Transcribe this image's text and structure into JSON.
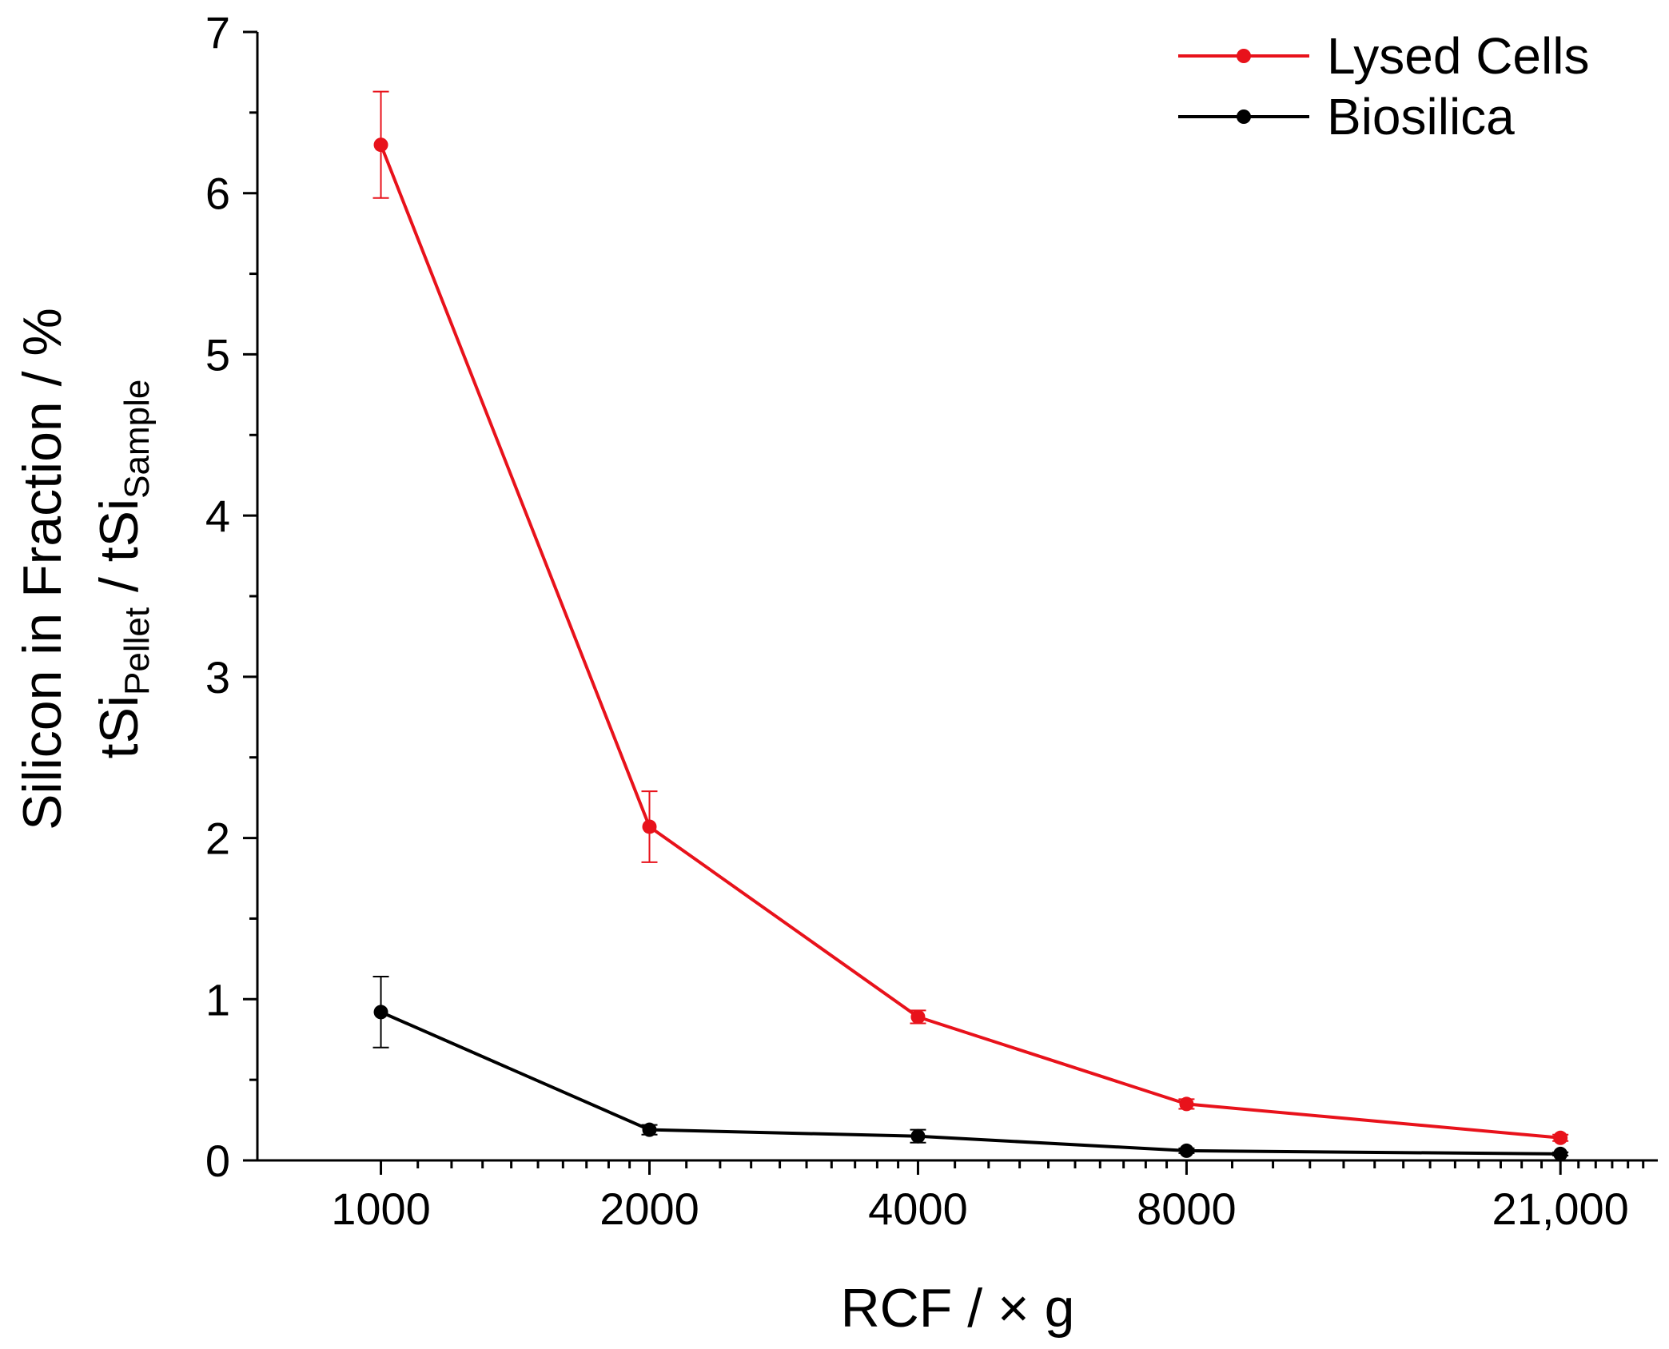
{
  "chart_data": {
    "type": "line",
    "title": "",
    "xlabel": "RCF / × g",
    "ylabel_line1": "Silicon in Fraction / %",
    "ylabel_line2": {
      "parts": [
        {
          "text": "tSi",
          "sub": false
        },
        {
          "text": "Pellet",
          "sub": true
        },
        {
          "text": " / tSi",
          "sub": false
        },
        {
          "text": "Sample",
          "sub": true
        }
      ]
    },
    "x_scale": "log",
    "xlim": [
      727,
      27000
    ],
    "ylim": [
      0,
      7
    ],
    "x_tick_values": [
      1000,
      2000,
      4000,
      8000,
      21000
    ],
    "x_tick_labels": [
      "1000",
      "2000",
      "4000",
      "8000",
      "21,000"
    ],
    "y_ticks": [
      0,
      1,
      2,
      3,
      4,
      5,
      6,
      7
    ],
    "y_tick_labels": [
      "0",
      "1",
      "2",
      "3",
      "4",
      "5",
      "6",
      "7"
    ],
    "x_minor_ticks": [
      1100,
      1200,
      1300,
      1400,
      1500,
      1600,
      1700,
      1800,
      1900,
      2200,
      2400,
      2600,
      2800,
      3000,
      3200,
      3400,
      3600,
      3800,
      4400,
      4800,
      5200,
      5600,
      6000,
      6400,
      6800,
      7200,
      7600,
      9000,
      10000,
      11000,
      12000,
      13000,
      14000,
      15000,
      16000,
      17000,
      18000,
      19000,
      20000,
      22000,
      23000,
      24000,
      25000,
      26000
    ],
    "y_minor_ticks": [
      0.5,
      1.5,
      2.5,
      3.5,
      4.5,
      5.5,
      6.5
    ],
    "x": [
      1000,
      2000,
      4000,
      8000,
      21000
    ],
    "legend_position": "top-right",
    "series": [
      {
        "name": "Lysed Cells",
        "color": "#e8121b",
        "values": [
          6.3,
          2.07,
          0.89,
          0.35,
          0.14
        ],
        "errors": [
          0.33,
          0.22,
          0.04,
          0.03,
          0.02
        ]
      },
      {
        "name": "Biosilica",
        "color": "#000000",
        "values": [
          0.92,
          0.19,
          0.15,
          0.06,
          0.04
        ],
        "errors": [
          0.22,
          0.03,
          0.04,
          0.015,
          0.01
        ]
      }
    ]
  }
}
